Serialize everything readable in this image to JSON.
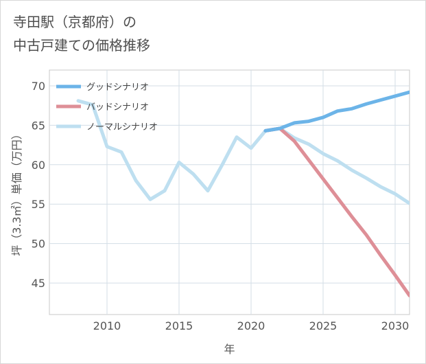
{
  "title_line1": "寺田駅（京都府）の",
  "title_line2": "中古戸建ての価格推移",
  "chart_data": {
    "type": "line",
    "xlabel": "年",
    "ylabel": "坪（3.3㎡）単価（万円）",
    "xlim": [
      2006,
      2031
    ],
    "ylim": [
      41,
      72
    ],
    "xticks": [
      2010,
      2015,
      2020,
      2025,
      2030
    ],
    "yticks": [
      45,
      50,
      55,
      60,
      65,
      70
    ],
    "grid": true,
    "legend_position": "top-left",
    "series": [
      {
        "name": "グッドシナリオ",
        "color": "#6cb4e8",
        "x": [
          2021,
          2022,
          2023,
          2024,
          2025,
          2026,
          2027,
          2028,
          2029,
          2030,
          2031
        ],
        "values": [
          64.3,
          64.6,
          65.3,
          65.5,
          66.0,
          66.8,
          67.1,
          67.7,
          68.2,
          68.7,
          69.2
        ]
      },
      {
        "name": "バッドシナリオ",
        "color": "#de8f97",
        "x": [
          2021,
          2022,
          2023,
          2024,
          2025,
          2026,
          2027,
          2028,
          2029,
          2030,
          2031
        ],
        "values": [
          64.3,
          64.6,
          63.0,
          60.6,
          58.2,
          55.8,
          53.4,
          51.1,
          48.5,
          46.0,
          43.4
        ]
      },
      {
        "name": "ノーマルシナリオ",
        "color": "#bedff0",
        "x": [
          2008,
          2009,
          2010,
          2011,
          2012,
          2013,
          2014,
          2015,
          2016,
          2017,
          2018,
          2019,
          2020,
          2021,
          2022,
          2023,
          2024,
          2025,
          2026,
          2027,
          2028,
          2029,
          2030,
          2031
        ],
        "values": [
          68.1,
          67.6,
          62.3,
          61.6,
          58.0,
          55.6,
          56.7,
          60.3,
          58.8,
          56.7,
          60.0,
          63.5,
          62.1,
          64.3,
          64.6,
          63.4,
          62.6,
          61.4,
          60.5,
          59.3,
          58.3,
          57.2,
          56.3,
          55.1
        ]
      }
    ]
  }
}
